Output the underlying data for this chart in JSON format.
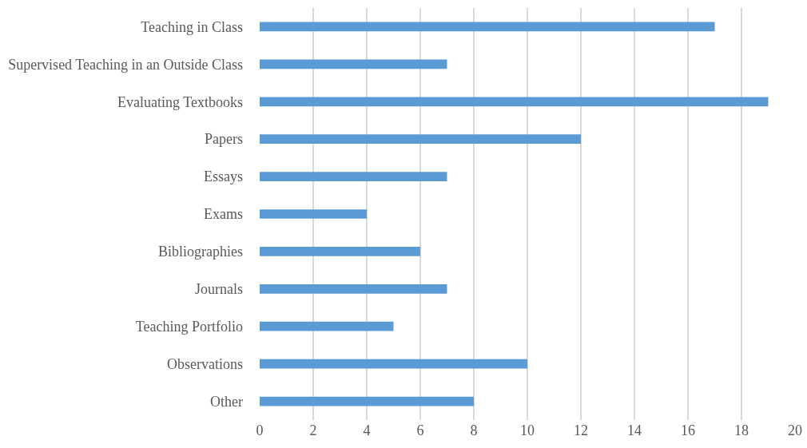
{
  "chart_data": {
    "type": "bar",
    "orientation": "horizontal",
    "categories": [
      "Teaching in Class",
      "Supervised Teaching in an Outside Class",
      "Evaluating Textbooks",
      "Papers",
      "Essays",
      "Exams",
      "Bibliographies",
      "Journals",
      "Teaching Portfolio",
      "Observations",
      "Other"
    ],
    "values": [
      17,
      7,
      19,
      12,
      7,
      4,
      6,
      7,
      5,
      10,
      8
    ],
    "color": "#5b9bd5",
    "xlim": [
      0,
      20
    ],
    "xticks": [
      0,
      2,
      4,
      6,
      8,
      10,
      12,
      14,
      16,
      18,
      20
    ],
    "grid": "x",
    "legend": false
  }
}
